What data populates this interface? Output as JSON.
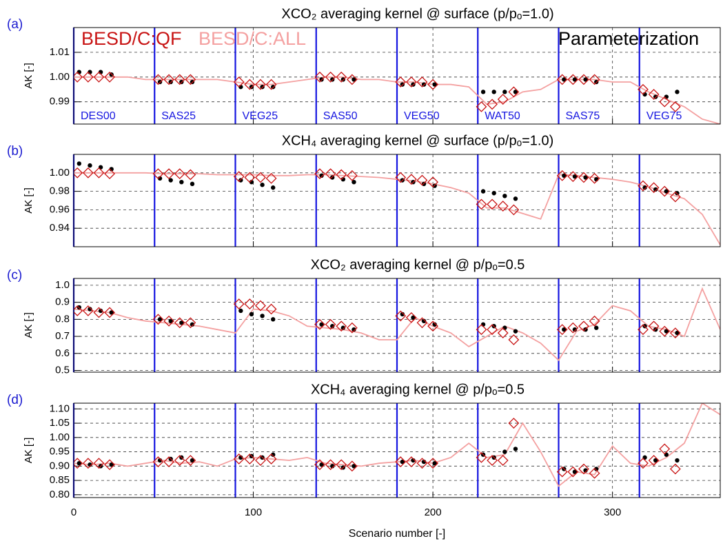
{
  "chart_data": [
    {
      "type": "scatter",
      "label": "(a)",
      "title": "XCO₂ averaging kernel @ surface (p/pₒ=1.0)",
      "ylabel": "AK [-]",
      "xlim": [
        0,
        360
      ],
      "xticks": [
        0,
        100,
        200,
        300
      ],
      "ylim": [
        0.981,
        1.02
      ],
      "yticks": [
        0.99,
        {
          "value": 1,
          "label": "1.00"
        },
        1.01
      ],
      "grid": true,
      "dividers": [
        {
          "x": 0,
          "label": "DES00"
        },
        {
          "x": 45,
          "label": "SAS25"
        },
        {
          "x": 90,
          "label": "VEG25"
        },
        {
          "x": 135,
          "label": "SAS50"
        },
        {
          "x": 180,
          "label": "VEG50"
        },
        {
          "x": 225,
          "label": "WAT50"
        },
        {
          "x": 270,
          "label": "SAS75"
        },
        {
          "x": 315,
          "label": "VEG75"
        }
      ],
      "series": [
        {
          "name": "BESD/C:QF",
          "color": "#c81414",
          "marker": "diamond",
          "x": [
            2,
            8,
            14,
            20,
            47,
            53,
            59,
            65,
            92,
            98,
            104,
            110,
            137,
            143,
            149,
            155,
            182,
            188,
            194,
            200,
            227,
            233,
            239,
            245,
            272,
            278,
            284,
            290,
            317,
            323,
            329,
            335
          ],
          "values": [
            1.0,
            1.0,
            1.0,
            1.0,
            0.999,
            0.999,
            0.999,
            0.999,
            0.998,
            0.997,
            0.997,
            0.997,
            1.0,
            1.0,
            1.0,
            0.999,
            0.998,
            0.998,
            0.998,
            0.997,
            0.988,
            0.989,
            0.991,
            0.994,
            0.999,
            0.999,
            0.999,
            0.999,
            0.995,
            0.993,
            0.99,
            0.988
          ]
        },
        {
          "name": "BESD/C:ALL",
          "color": "#f4a0a0",
          "marker": "line",
          "x": [
            0,
            10,
            20,
            30,
            40,
            50,
            60,
            70,
            80,
            90,
            100,
            110,
            120,
            130,
            140,
            150,
            160,
            170,
            180,
            190,
            200,
            210,
            220,
            230,
            240,
            250,
            260,
            270,
            280,
            290,
            300,
            310,
            320,
            330,
            340,
            350,
            360
          ],
          "values": [
            1.0,
            1.0,
            1.0,
            1.0,
            0.999,
            0.999,
            0.999,
            0.999,
            0.999,
            0.998,
            0.997,
            0.997,
            0.998,
            0.999,
            1.0,
            1.0,
            0.999,
            0.999,
            0.998,
            0.998,
            0.997,
            0.997,
            0.996,
            0.989,
            0.99,
            0.994,
            0.995,
            0.999,
            0.999,
            0.999,
            0.998,
            0.998,
            0.994,
            0.991,
            0.988,
            0.983,
            0.981
          ]
        },
        {
          "name": "Parameterization",
          "color": "#000000",
          "marker": "dot",
          "x": [
            3,
            9,
            15,
            21,
            48,
            54,
            60,
            66,
            93,
            99,
            105,
            111,
            138,
            144,
            150,
            156,
            183,
            189,
            195,
            201,
            228,
            234,
            240,
            246,
            273,
            279,
            285,
            291,
            318,
            324,
            330,
            336
          ],
          "values": [
            1.002,
            1.002,
            1.002,
            1.001,
            0.998,
            0.998,
            0.998,
            0.998,
            0.996,
            0.996,
            0.996,
            0.996,
            0.999,
            0.999,
            0.999,
            0.999,
            0.997,
            0.997,
            0.997,
            0.997,
            0.994,
            0.994,
            0.994,
            0.994,
            0.999,
            0.999,
            0.999,
            0.998,
            0.993,
            0.992,
            0.992,
            0.994
          ]
        }
      ]
    },
    {
      "type": "scatter",
      "label": "(b)",
      "title": "XCH₄ averaging kernel @ surface (p/pₒ=1.0)",
      "ylabel": "AK [-]",
      "xlim": [
        0,
        360
      ],
      "xticks": [
        0,
        100,
        200,
        300
      ],
      "ylim": [
        0.92,
        1.02
      ],
      "yticks": [
        0.94,
        0.96,
        0.98,
        {
          "value": 1,
          "label": "1.00"
        }
      ],
      "grid": true,
      "dividers": [
        0,
        45,
        90,
        135,
        180,
        225,
        270,
        315
      ],
      "series": [
        {
          "color": "#c81414",
          "marker": "diamond",
          "x": [
            2,
            8,
            14,
            20,
            47,
            53,
            59,
            65,
            92,
            98,
            104,
            110,
            137,
            143,
            149,
            155,
            182,
            188,
            194,
            200,
            227,
            233,
            239,
            245,
            272,
            278,
            284,
            290,
            317,
            323,
            329,
            335
          ],
          "values": [
            1.0,
            1.0,
            1.0,
            0.999,
            0.999,
            0.999,
            0.999,
            0.998,
            0.996,
            0.995,
            0.995,
            0.994,
            0.999,
            0.999,
            0.998,
            0.997,
            0.995,
            0.993,
            0.992,
            0.99,
            0.966,
            0.966,
            0.964,
            0.96,
            0.997,
            0.996,
            0.995,
            0.994,
            0.986,
            0.984,
            0.98,
            0.974
          ]
        },
        {
          "color": "#f4a0a0",
          "marker": "line",
          "x": [
            0,
            10,
            20,
            30,
            40,
            50,
            60,
            70,
            80,
            90,
            100,
            110,
            120,
            130,
            140,
            150,
            160,
            170,
            180,
            190,
            200,
            210,
            220,
            230,
            240,
            250,
            260,
            270,
            280,
            290,
            300,
            310,
            320,
            330,
            340,
            350,
            360
          ],
          "values": [
            1.0,
            1.0,
            1.0,
            1.0,
            1.0,
            0.999,
            0.999,
            0.999,
            0.998,
            0.998,
            0.998,
            0.997,
            0.997,
            0.998,
            0.998,
            0.997,
            0.996,
            0.995,
            0.993,
            0.991,
            0.988,
            0.984,
            0.978,
            0.962,
            0.962,
            0.956,
            0.95,
            0.998,
            0.997,
            0.995,
            0.993,
            0.99,
            0.985,
            0.978,
            0.972,
            0.955,
            0.922
          ]
        },
        {
          "color": "#000000",
          "marker": "dot",
          "x": [
            3,
            9,
            15,
            21,
            48,
            54,
            60,
            66,
            93,
            99,
            105,
            111,
            138,
            144,
            150,
            156,
            183,
            189,
            195,
            201,
            228,
            234,
            240,
            246,
            273,
            279,
            285,
            291,
            318,
            324,
            330,
            336
          ],
          "values": [
            1.01,
            1.008,
            1.006,
            1.004,
            0.994,
            0.992,
            0.99,
            0.988,
            0.992,
            0.99,
            0.987,
            0.984,
            0.997,
            0.995,
            0.993,
            0.99,
            0.992,
            0.99,
            0.988,
            0.986,
            0.98,
            0.978,
            0.975,
            0.972,
            0.997,
            0.996,
            0.995,
            0.993,
            0.984,
            0.982,
            0.98,
            0.978
          ]
        }
      ]
    },
    {
      "type": "scatter",
      "label": "(c)",
      "title": "XCO₂ averaging kernel @ p/pₒ=0.5",
      "ylabel": "AK [-]",
      "xlim": [
        0,
        360
      ],
      "xticks": [
        0,
        100,
        200,
        300
      ],
      "ylim": [
        0.49,
        1.04
      ],
      "yticks": [
        0.5,
        0.6,
        0.7,
        0.8,
        0.9,
        {
          "value": 1,
          "label": "1.0"
        }
      ],
      "grid": true,
      "dividers": [
        0,
        45,
        90,
        135,
        180,
        225,
        270,
        315
      ],
      "series": [
        {
          "color": "#c81414",
          "marker": "diamond",
          "x": [
            2,
            8,
            14,
            20,
            47,
            53,
            59,
            65,
            92,
            98,
            104,
            110,
            137,
            143,
            149,
            155,
            182,
            188,
            194,
            200,
            227,
            233,
            239,
            245,
            272,
            278,
            284,
            290,
            317,
            323,
            329,
            335
          ],
          "values": [
            0.85,
            0.85,
            0.84,
            0.84,
            0.8,
            0.79,
            0.78,
            0.78,
            0.89,
            0.89,
            0.88,
            0.86,
            0.77,
            0.77,
            0.76,
            0.75,
            0.82,
            0.81,
            0.78,
            0.76,
            0.74,
            0.74,
            0.72,
            0.68,
            0.74,
            0.75,
            0.76,
            0.79,
            0.74,
            0.76,
            0.73,
            0.72
          ]
        },
        {
          "color": "#f4a0a0",
          "marker": "line",
          "x": [
            0,
            10,
            20,
            30,
            40,
            50,
            60,
            70,
            80,
            90,
            100,
            110,
            120,
            130,
            140,
            150,
            160,
            170,
            180,
            190,
            200,
            210,
            220,
            230,
            240,
            250,
            260,
            270,
            280,
            290,
            300,
            310,
            320,
            330,
            340,
            350,
            360
          ],
          "values": [
            0.86,
            0.85,
            0.84,
            0.81,
            0.79,
            0.78,
            0.77,
            0.76,
            0.74,
            0.72,
            0.86,
            0.85,
            0.82,
            0.76,
            0.75,
            0.74,
            0.72,
            0.68,
            0.68,
            0.81,
            0.76,
            0.72,
            0.64,
            0.7,
            0.76,
            0.72,
            0.66,
            0.56,
            0.73,
            0.77,
            0.88,
            0.85,
            0.76,
            0.74,
            0.7,
            0.98,
            0.74
          ]
        },
        {
          "color": "#000000",
          "marker": "dot",
          "x": [
            3,
            9,
            15,
            21,
            48,
            54,
            60,
            66,
            93,
            99,
            105,
            111,
            138,
            144,
            150,
            156,
            183,
            189,
            195,
            201,
            228,
            234,
            240,
            246,
            273,
            279,
            285,
            291,
            318,
            324,
            330,
            336
          ],
          "values": [
            0.87,
            0.86,
            0.85,
            0.84,
            0.8,
            0.79,
            0.78,
            0.77,
            0.85,
            0.83,
            0.82,
            0.8,
            0.77,
            0.76,
            0.75,
            0.74,
            0.83,
            0.81,
            0.79,
            0.77,
            0.77,
            0.76,
            0.75,
            0.73,
            0.74,
            0.74,
            0.74,
            0.75,
            0.76,
            0.74,
            0.73,
            0.72
          ]
        }
      ]
    },
    {
      "type": "scatter",
      "label": "(d)",
      "title": "XCH₄ averaging kernel @ p/pₒ=0.5",
      "ylabel": "AK [-]",
      "xlabel": "Scenario number [-]",
      "xlim": [
        0,
        360
      ],
      "xticks": [
        0,
        100,
        200,
        300
      ],
      "ylim": [
        0.79,
        1.12
      ],
      "yticks": [
        {
          "value": 0.8,
          "label": "0.80"
        },
        0.85,
        {
          "value": 0.9,
          "label": "0.90"
        },
        0.95,
        {
          "value": 1,
          "label": "1.00"
        },
        1.05,
        {
          "value": 1.1,
          "label": "1.10"
        }
      ],
      "grid": true,
      "dividers": [
        0,
        45,
        90,
        135,
        180,
        225,
        270,
        315
      ],
      "series": [
        {
          "color": "#c81414",
          "marker": "diamond",
          "x": [
            2,
            8,
            14,
            20,
            47,
            53,
            59,
            65,
            92,
            98,
            104,
            110,
            137,
            143,
            149,
            155,
            182,
            188,
            194,
            200,
            227,
            233,
            239,
            245,
            272,
            278,
            284,
            290,
            317,
            323,
            329,
            335
          ],
          "values": [
            0.91,
            0.91,
            0.91,
            0.905,
            0.915,
            0.915,
            0.92,
            0.92,
            0.925,
            0.925,
            0.92,
            0.925,
            0.905,
            0.905,
            0.905,
            0.9,
            0.915,
            0.915,
            0.91,
            0.91,
            0.93,
            0.92,
            0.92,
            1.05,
            0.88,
            0.88,
            0.89,
            0.875,
            0.91,
            0.92,
            0.96,
            0.89
          ]
        },
        {
          "color": "#f4a0a0",
          "marker": "line",
          "x": [
            0,
            10,
            20,
            30,
            40,
            50,
            60,
            70,
            80,
            90,
            100,
            110,
            120,
            130,
            140,
            150,
            160,
            170,
            180,
            190,
            200,
            210,
            220,
            230,
            240,
            250,
            260,
            270,
            280,
            290,
            300,
            310,
            320,
            330,
            340,
            350,
            360
          ],
          "values": [
            0.91,
            0.905,
            0.91,
            0.9,
            0.91,
            0.92,
            0.91,
            0.915,
            0.9,
            0.925,
            0.93,
            0.925,
            0.92,
            0.93,
            0.91,
            0.905,
            0.9,
            0.91,
            0.915,
            0.92,
            0.91,
            0.93,
            0.98,
            0.93,
            0.94,
            1.05,
            0.95,
            0.83,
            0.88,
            0.87,
            0.97,
            0.91,
            0.9,
            0.93,
            0.98,
            1.12,
            1.08
          ]
        },
        {
          "color": "#000000",
          "marker": "dot",
          "x": [
            3,
            9,
            15,
            21,
            48,
            54,
            60,
            66,
            93,
            99,
            105,
            111,
            138,
            144,
            150,
            156,
            183,
            189,
            195,
            201,
            228,
            234,
            240,
            246,
            273,
            279,
            285,
            291,
            318,
            324,
            330,
            336
          ],
          "values": [
            0.91,
            0.905,
            0.9,
            0.905,
            0.92,
            0.925,
            0.93,
            0.92,
            0.93,
            0.935,
            0.93,
            0.94,
            0.905,
            0.9,
            0.895,
            0.9,
            0.915,
            0.92,
            0.915,
            0.91,
            0.94,
            0.93,
            0.95,
            0.96,
            0.89,
            0.88,
            0.885,
            0.89,
            0.93,
            0.92,
            0.94,
            0.92
          ]
        }
      ]
    }
  ]
}
